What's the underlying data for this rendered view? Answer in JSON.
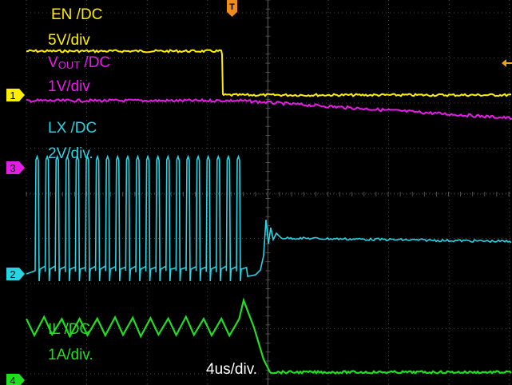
{
  "channels": [
    {
      "id": "1",
      "name": "EN /DC",
      "scale": "5V/div",
      "color": "#ffee00"
    },
    {
      "id": "2",
      "name_main": "V",
      "name_sub": "OUT",
      "name_rest": " /DC",
      "scale": "1V/div",
      "color": "#e81ce8"
    },
    {
      "id": "3",
      "name": "LX /DC",
      "scale": "2V/div.",
      "color": "#28d4e4"
    },
    {
      "id": "4",
      "name": "IL /DC",
      "scale": "1A/div.",
      "color": "#22dd22"
    }
  ],
  "marker_labels": {
    "m1": "1",
    "m2": "3",
    "m3": "2",
    "m4": "4"
  },
  "timebase": "4us/div.",
  "trigger_marker": "T",
  "colors": {
    "background": "#000000",
    "grid": "#606060"
  }
}
